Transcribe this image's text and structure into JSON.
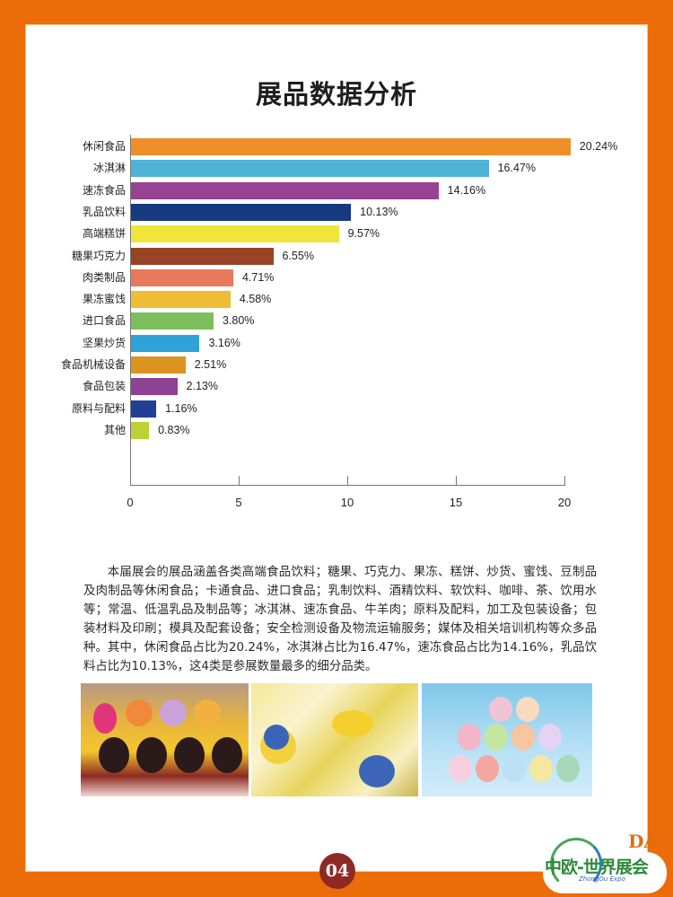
{
  "page": {
    "title": "展品数据分析",
    "page_number": "04",
    "frame_color": "#ec6c0a"
  },
  "chart_data": {
    "type": "bar",
    "orientation": "horizontal",
    "title": "展品数据分析",
    "xlabel": "",
    "ylabel": "",
    "xlim": [
      0,
      20
    ],
    "x_ticks": [
      "0",
      "5",
      "10",
      "15",
      "20"
    ],
    "grid": false,
    "legend": null,
    "categories": [
      "休闲食品",
      "冰淇淋",
      "速冻食品",
      "乳品饮料",
      "高端糕饼",
      "糖果巧克力",
      "肉类制品",
      "果冻蜜饯",
      "进口食品",
      "坚果炒货",
      "食品机械设备",
      "食品包装",
      "原料与配料",
      "其他"
    ],
    "values": [
      20.24,
      16.47,
      14.16,
      10.13,
      9.57,
      6.55,
      4.71,
      4.58,
      3.8,
      3.16,
      2.51,
      2.13,
      1.16,
      0.83
    ],
    "value_labels": [
      "20.24%",
      "16.47%",
      "14.16%",
      "10.13%",
      "9.57%",
      "6.55%",
      "4.71%",
      "4.58%",
      "3.80%",
      "3.16%",
      "2.51%",
      "2.13%",
      "1.16%",
      "0.83%"
    ],
    "colors": [
      "#ee8f2a",
      "#4fb3d8",
      "#974391",
      "#17397f",
      "#f1e43a",
      "#984226",
      "#e8795c",
      "#efbd33",
      "#7cbf5c",
      "#2fa2d9",
      "#dc931f",
      "#8e4294",
      "#233f94",
      "#bcd234"
    ]
  },
  "body_text": "本届展会的展品涵盖各类高端食品饮料；糖果、巧克力、果冻、糕饼、炒货、蜜饯、豆制品及肉制品等休闲食品；卡通食品、进口食品；乳制饮料、酒精饮料、软饮料、咖啡、茶、饮用水等；常温、低温乳品及制品等；冰淇淋、速冻食品、牛羊肉；原料及配料，加工及包装设备；包装材料及印刷；模具及配套设备；安全检测设备及物流运输服务；媒体及相关培训机构等众多品种。其中，休闲食品占比为20.24%，冰淇淋占比为16.47%，速冻食品占比为14.16%，乳品饮料占比为10.13%，这4类是参展数量最多的细分品类。",
  "photos": [
    {
      "subject": "cartoon-character-food-figures"
    },
    {
      "subject": "packaged-snacks"
    },
    {
      "subject": "candy-jars-display"
    }
  ],
  "logo": {
    "mark": "DA",
    "name": "中欧-世界展会",
    "subtitle": "ZhongOu Expo"
  }
}
